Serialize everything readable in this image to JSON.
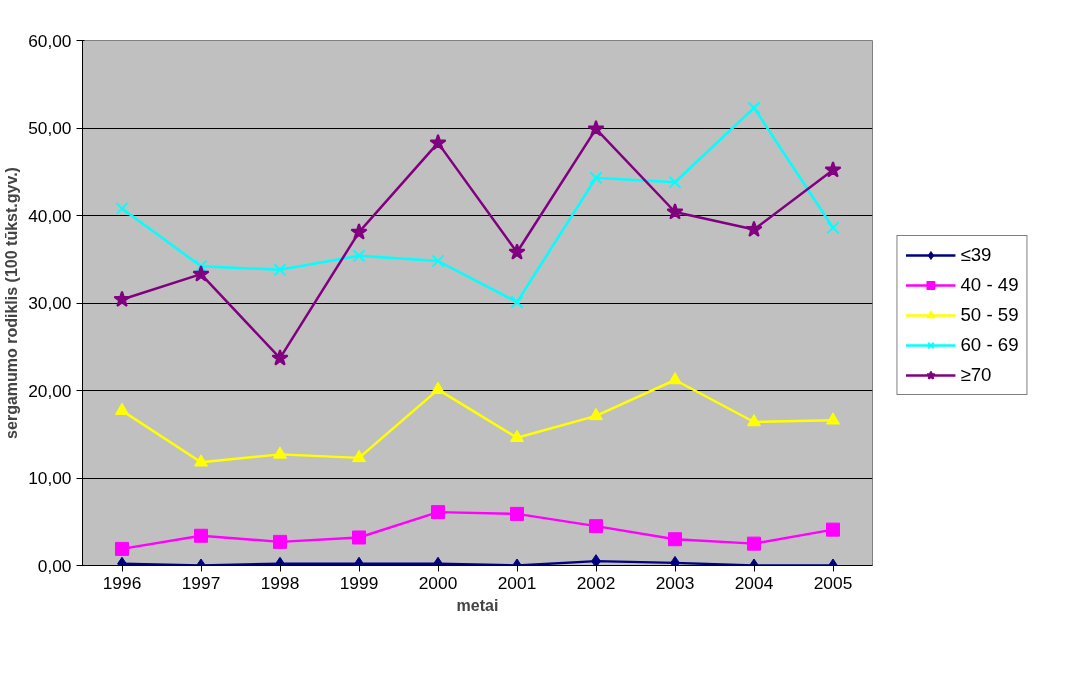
{
  "chart_data": {
    "type": "line",
    "xlabel": "metai",
    "ylabel": "sergamumo rodiklis (100 tūkst.gyv.)",
    "categories": [
      "1996",
      "1997",
      "1998",
      "1999",
      "2000",
      "2001",
      "2002",
      "2003",
      "2004",
      "2005"
    ],
    "series": [
      {
        "name": "≤39",
        "color": "#000080",
        "marker": "diamond",
        "values": [
          0.2,
          0.0,
          0.2,
          0.2,
          0.2,
          0.0,
          0.5,
          0.3,
          0.0,
          0.0
        ]
      },
      {
        "name": "40 - 49",
        "color": "#ff00ff",
        "marker": "square",
        "values": [
          1.9,
          3.4,
          2.7,
          3.2,
          6.1,
          5.9,
          4.5,
          3.0,
          2.5,
          4.1
        ]
      },
      {
        "name": "50 - 59",
        "color": "#ffff00",
        "marker": "triangle",
        "values": [
          17.7,
          11.8,
          12.7,
          12.3,
          20.1,
          14.6,
          17.1,
          21.2,
          16.4,
          16.6
        ]
      },
      {
        "name": "60 - 69",
        "color": "#00ffff",
        "marker": "cross",
        "values": [
          40.8,
          34.2,
          33.8,
          35.4,
          34.8,
          30.1,
          44.3,
          43.8,
          52.3,
          38.6
        ]
      },
      {
        "name": "≥70",
        "color": "#800080",
        "marker": "star",
        "values": [
          30.4,
          33.3,
          23.7,
          38.1,
          48.3,
          35.8,
          49.9,
          40.4,
          38.4,
          45.2
        ]
      }
    ],
    "ylim": [
      0,
      60
    ],
    "yticks": [
      {
        "value": 0,
        "label": "0,00"
      },
      {
        "value": 10,
        "label": "10,00"
      },
      {
        "value": 20,
        "label": "20,00"
      },
      {
        "value": 30,
        "label": "30,00"
      },
      {
        "value": 40,
        "label": "40,00"
      },
      {
        "value": 50,
        "label": "50,00"
      },
      {
        "value": 60,
        "label": "60,00"
      }
    ],
    "grid": "y",
    "legend": "right",
    "line_style": "solid"
  }
}
